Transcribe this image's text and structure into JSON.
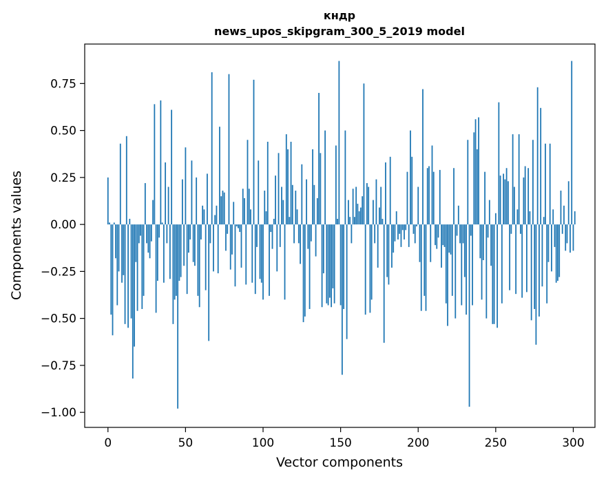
{
  "chart_data": {
    "type": "bar",
    "title": "кндр",
    "subtitle": "news_upos_skipgram_300_5_2019 model",
    "xlabel": "Vector components",
    "ylabel": "Components values",
    "xlim": [
      -15,
      314
    ],
    "ylim": [
      -1.08,
      0.96
    ],
    "x_ticks": [
      0,
      50,
      100,
      150,
      200,
      250,
      300
    ],
    "y_ticks": [
      -1.0,
      -0.75,
      -0.5,
      -0.25,
      0.0,
      0.25,
      0.5,
      0.75
    ],
    "y_tick_labels": [
      "−1.00",
      "−0.75",
      "−0.50",
      "−0.25",
      "0.00",
      "0.25",
      "0.50",
      "0.75"
    ],
    "bar_color": "#1f77b4",
    "values": [
      0.25,
      0.01,
      -0.48,
      -0.59,
      0.01,
      -0.18,
      -0.43,
      -0.25,
      0.43,
      -0.31,
      -0.27,
      -0.53,
      0.47,
      -0.55,
      0.03,
      -0.5,
      -0.82,
      -0.65,
      -0.2,
      -0.46,
      -0.1,
      -0.06,
      -0.45,
      -0.38,
      0.22,
      -0.1,
      -0.15,
      -0.18,
      -0.09,
      0.13,
      0.64,
      -0.47,
      -0.3,
      -0.07,
      0.66,
      0.01,
      -0.31,
      0.33,
      -0.1,
      0.2,
      -0.29,
      0.61,
      -0.53,
      -0.4,
      -0.38,
      -0.98,
      -0.3,
      -0.28,
      0.24,
      -0.22,
      0.41,
      -0.37,
      -0.15,
      -0.08,
      0.34,
      -0.2,
      -0.22,
      0.25,
      -0.38,
      -0.44,
      -0.08,
      0.1,
      0.08,
      -0.35,
      0.27,
      -0.62,
      -0.1,
      0.81,
      -0.25,
      0.05,
      0.1,
      -0.26,
      0.52,
      0.15,
      0.18,
      0.17,
      -0.14,
      -0.05,
      0.8,
      -0.24,
      -0.16,
      0.12,
      -0.33,
      -0.01,
      -0.02,
      -0.04,
      -0.23,
      0.19,
      0.14,
      -0.32,
      0.45,
      0.19,
      0.08,
      -0.31,
      0.77,
      -0.37,
      -0.12,
      0.34,
      -0.29,
      -0.31,
      -0.4,
      0.18,
      0.07,
      0.44,
      -0.38,
      -0.04,
      -0.13,
      0.03,
      0.26,
      -0.25,
      0.38,
      -0.12,
      0.2,
      0.13,
      -0.4,
      0.48,
      0.4,
      0.04,
      0.44,
      0.21,
      -0.1,
      0.18,
      0.08,
      -0.1,
      -0.21,
      0.32,
      -0.52,
      -0.49,
      0.24,
      -0.13,
      -0.45,
      -0.09,
      0.4,
      0.21,
      -0.17,
      0.14,
      0.7,
      0.38,
      -0.44,
      -0.26,
      0.5,
      -0.42,
      -0.43,
      -0.39,
      -0.44,
      -0.34,
      -0.42,
      0.42,
      0.03,
      0.87,
      -0.43,
      -0.8,
      -0.45,
      0.5,
      -0.61,
      0.13,
      0.04,
      -0.1,
      0.19,
      0.04,
      0.2,
      0.11,
      0.07,
      0.09,
      0.15,
      0.75,
      -0.48,
      0.22,
      0.2,
      -0.47,
      -0.4,
      0.13,
      -0.1,
      0.24,
      -0.23,
      0.09,
      0.2,
      0.03,
      -0.63,
      0.33,
      -0.28,
      -0.32,
      0.36,
      -0.23,
      -0.15,
      -0.09,
      0.07,
      -0.08,
      -0.05,
      -0.12,
      -0.03,
      -0.08,
      -0.03,
      0.28,
      -0.12,
      0.5,
      0.36,
      -0.05,
      -0.1,
      -0.01,
      0.2,
      -0.2,
      -0.46,
      0.72,
      -0.38,
      -0.46,
      0.3,
      0.31,
      -0.2,
      0.42,
      0.28,
      -0.11,
      -0.13,
      -0.07,
      0.29,
      -0.23,
      -0.11,
      -0.12,
      -0.42,
      -0.54,
      -0.15,
      -0.16,
      -0.38,
      0.3,
      -0.5,
      -0.06,
      0.1,
      -0.1,
      -0.43,
      -0.1,
      -0.28,
      -0.48,
      0.45,
      -0.97,
      -0.06,
      -0.43,
      0.49,
      0.56,
      0.4,
      0.57,
      -0.18,
      -0.4,
      -0.19,
      0.28,
      -0.5,
      -0.07,
      0.13,
      -0.22,
      -0.53,
      -0.53,
      0.06,
      -0.55,
      0.65,
      0.26,
      -0.42,
      0.27,
      0.24,
      0.3,
      0.23,
      -0.35,
      -0.05,
      0.48,
      0.2,
      -0.37,
      0.08,
      0.48,
      -0.05,
      -0.39,
      0.25,
      0.31,
      -0.36,
      0.3,
      0.07,
      -0.51,
      0.45,
      -0.45,
      -0.64,
      0.73,
      -0.49,
      0.62,
      -0.33,
      0.04,
      0.43,
      -0.42,
      -0.2,
      0.43,
      -0.25,
      0.08,
      -0.12,
      -0.31,
      -0.3,
      -0.28,
      0.18,
      -0.05,
      0.1,
      -0.14,
      -0.1,
      0.23,
      -0.15,
      0.87,
      -0.14,
      0.07
    ]
  }
}
